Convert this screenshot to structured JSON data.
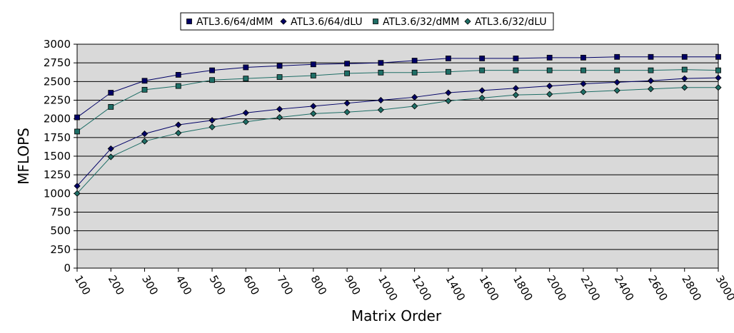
{
  "chart_data": {
    "type": "line",
    "title": "",
    "xlabel": "Matrix Order",
    "ylabel": "MFLOPS",
    "x": [
      "100",
      "200",
      "300",
      "400",
      "500",
      "600",
      "700",
      "800",
      "900",
      "1000",
      "1200",
      "1400",
      "1600",
      "1800",
      "2000",
      "2200",
      "2400",
      "2600",
      "2800",
      "3000"
    ],
    "ylim": [
      0,
      3000
    ],
    "yticks": [
      "0",
      "250",
      "500",
      "750",
      "1000",
      "1250",
      "1500",
      "1750",
      "2000",
      "2250",
      "2500",
      "2750",
      "3000"
    ],
    "grid": true,
    "legend_position": "top",
    "plot_background": "#d9d9d9",
    "series": [
      {
        "name": "ATL3.6/64/dMM",
        "marker": "square",
        "color": "#000066",
        "values": [
          2020,
          2350,
          2510,
          2590,
          2650,
          2690,
          2710,
          2730,
          2740,
          2750,
          2780,
          2810,
          2810,
          2810,
          2820,
          2820,
          2830,
          2830,
          2830,
          2830
        ]
      },
      {
        "name": "ATL3.6/64/dLU",
        "marker": "diamond",
        "color": "#000066",
        "values": [
          1100,
          1600,
          1800,
          1920,
          1980,
          2080,
          2130,
          2170,
          2210,
          2250,
          2290,
          2350,
          2380,
          2410,
          2440,
          2470,
          2490,
          2510,
          2540,
          2550
        ]
      },
      {
        "name": "ATL3.6/32/dMM",
        "marker": "square",
        "color": "#1e6e66",
        "values": [
          1830,
          2160,
          2390,
          2440,
          2520,
          2540,
          2560,
          2580,
          2610,
          2620,
          2620,
          2630,
          2650,
          2650,
          2650,
          2650,
          2650,
          2650,
          2660,
          2650
        ]
      },
      {
        "name": "ATL3.6/32/dLU",
        "marker": "diamond",
        "color": "#1e6e66",
        "values": [
          1000,
          1490,
          1700,
          1810,
          1890,
          1960,
          2020,
          2070,
          2090,
          2120,
          2170,
          2240,
          2280,
          2320,
          2330,
          2360,
          2380,
          2400,
          2420,
          2420
        ]
      }
    ]
  }
}
